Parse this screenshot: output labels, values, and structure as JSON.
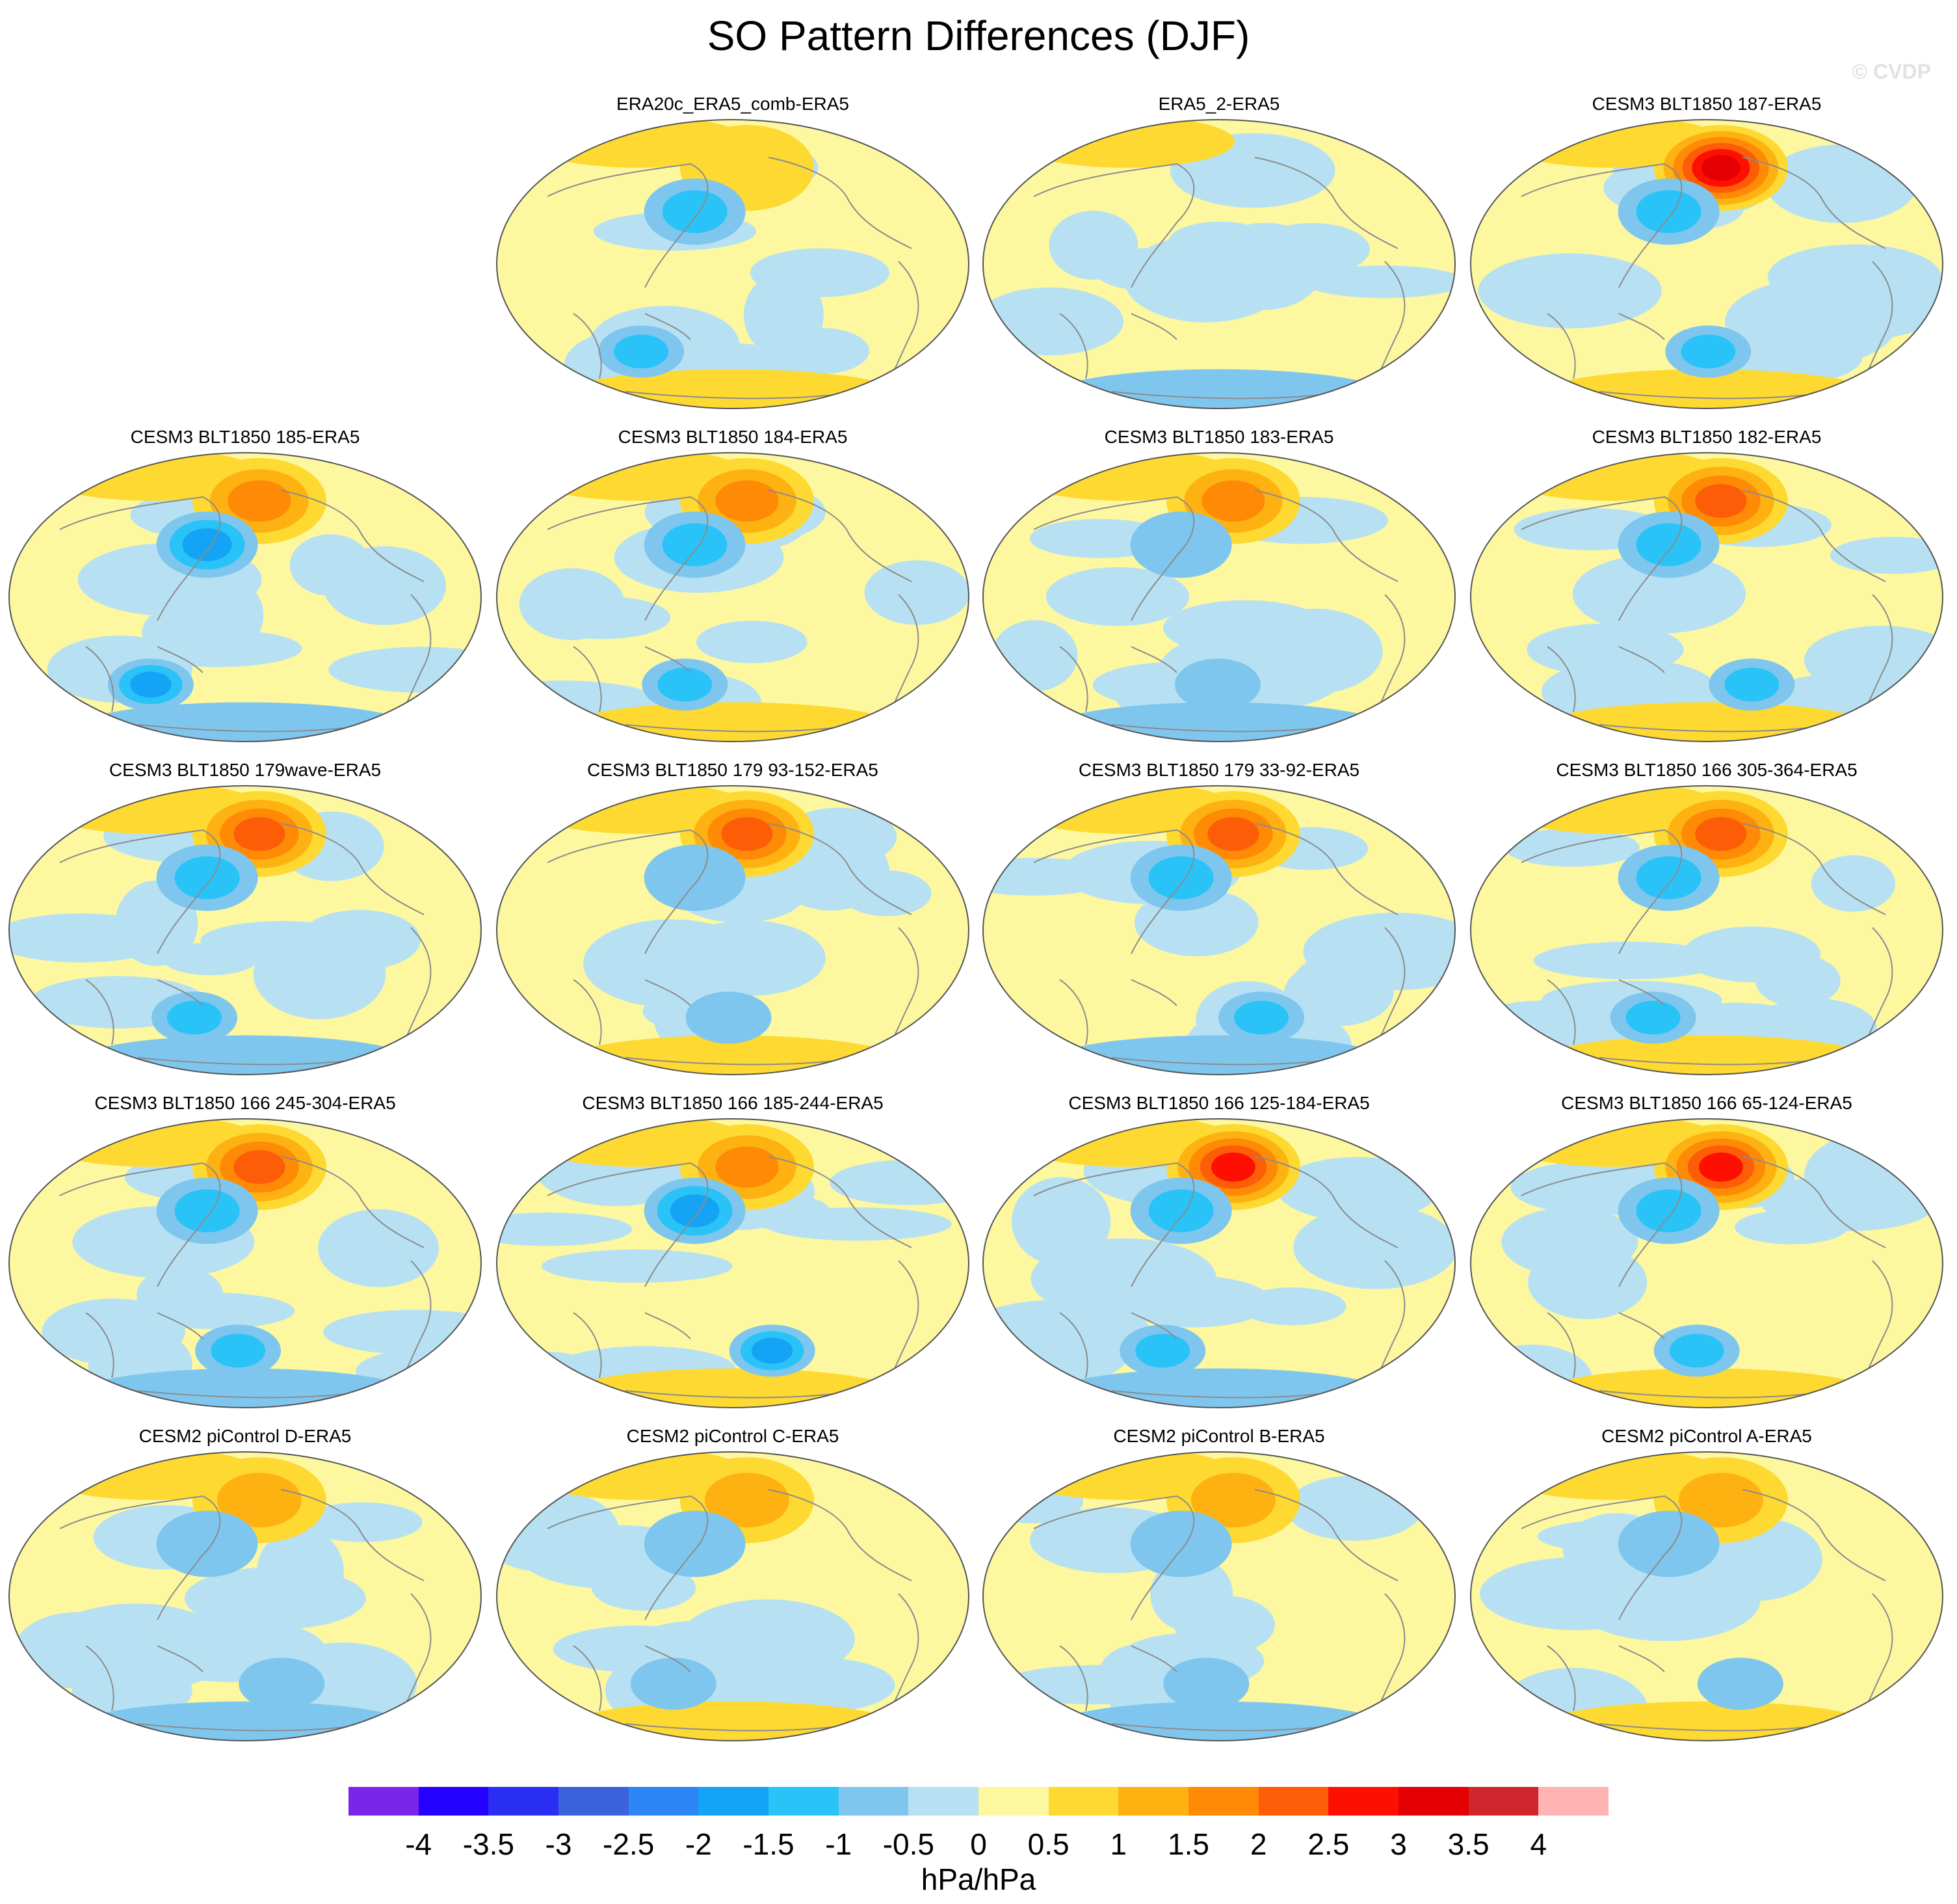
{
  "chart_data": {
    "type": "heatmap",
    "title": "SO Pattern Differences (DJF)",
    "watermark": "© CVDP",
    "projection": "global map",
    "units": "hPa/hPa",
    "colorbar": {
      "levels": [
        "-4",
        "-3.5",
        "-3",
        "-2.5",
        "-2",
        "-1.5",
        "-1",
        "-0.5",
        "0",
        "0.5",
        "1",
        "1.5",
        "2",
        "2.5",
        "3",
        "3.5",
        "4"
      ],
      "colors": [
        "#7b24ea",
        "#2400ff",
        "#2a2ef2",
        "#3a62dc",
        "#2d86f5",
        "#15a3f5",
        "#29c3f8",
        "#7fc6ee",
        "#b7e1f2",
        "#fdf8a0",
        "#fdd931",
        "#feb212",
        "#fe8a06",
        "#fd5d06",
        "#fd0f02",
        "#e40002",
        "#d0252c",
        "#ffb3b3"
      ]
    },
    "panels": [
      {
        "title": "ERA20c_ERA5_comb-ERA5",
        "peak_anomaly": 1.0,
        "min_anomaly": -1.5
      },
      {
        "title": "ERA5_2-ERA5",
        "peak_anomaly": 0.5,
        "min_anomaly": -0.5
      },
      {
        "title": "CESM3 BLT1850 187-ERA5",
        "peak_anomaly": 3.5,
        "min_anomaly": -1.5
      },
      {
        "title": "CESM3 BLT1850 185-ERA5",
        "peak_anomaly": 2.0,
        "min_anomaly": -2.0
      },
      {
        "title": "CESM3 BLT1850 184-ERA5",
        "peak_anomaly": 2.0,
        "min_anomaly": -1.5
      },
      {
        "title": "CESM3 BLT1850 183-ERA5",
        "peak_anomaly": 2.0,
        "min_anomaly": -1.0
      },
      {
        "title": "CESM3 BLT1850 182-ERA5",
        "peak_anomaly": 2.5,
        "min_anomaly": -1.5
      },
      {
        "title": "CESM3 BLT1850 179wave-ERA5",
        "peak_anomaly": 2.5,
        "min_anomaly": -1.5
      },
      {
        "title": "CESM3 BLT1850 179 93-152-ERA5",
        "peak_anomaly": 2.5,
        "min_anomaly": -1.0
      },
      {
        "title": "CESM3 BLT1850 179 33-92-ERA5",
        "peak_anomaly": 2.5,
        "min_anomaly": -1.5
      },
      {
        "title": "CESM3 BLT1850 166 305-364-ERA5",
        "peak_anomaly": 2.5,
        "min_anomaly": -1.5
      },
      {
        "title": "CESM3 BLT1850 166 245-304-ERA5",
        "peak_anomaly": 2.5,
        "min_anomaly": -1.5
      },
      {
        "title": "CESM3 BLT1850 166 185-244-ERA5",
        "peak_anomaly": 2.0,
        "min_anomaly": -2.0
      },
      {
        "title": "CESM3 BLT1850 166 125-184-ERA5",
        "peak_anomaly": 3.0,
        "min_anomaly": -1.5
      },
      {
        "title": "CESM3 BLT1850 166 65-124-ERA5",
        "peak_anomaly": 3.0,
        "min_anomaly": -1.5
      },
      {
        "title": "CESM2 piControl D-ERA5",
        "peak_anomaly": 1.5,
        "min_anomaly": -1.0
      },
      {
        "title": "CESM2 piControl C-ERA5",
        "peak_anomaly": 1.5,
        "min_anomaly": -1.0
      },
      {
        "title": "CESM2 piControl B-ERA5",
        "peak_anomaly": 1.5,
        "min_anomaly": -1.0
      },
      {
        "title": "CESM2 piControl A-ERA5",
        "peak_anomaly": 1.5,
        "min_anomaly": -1.0
      }
    ]
  }
}
